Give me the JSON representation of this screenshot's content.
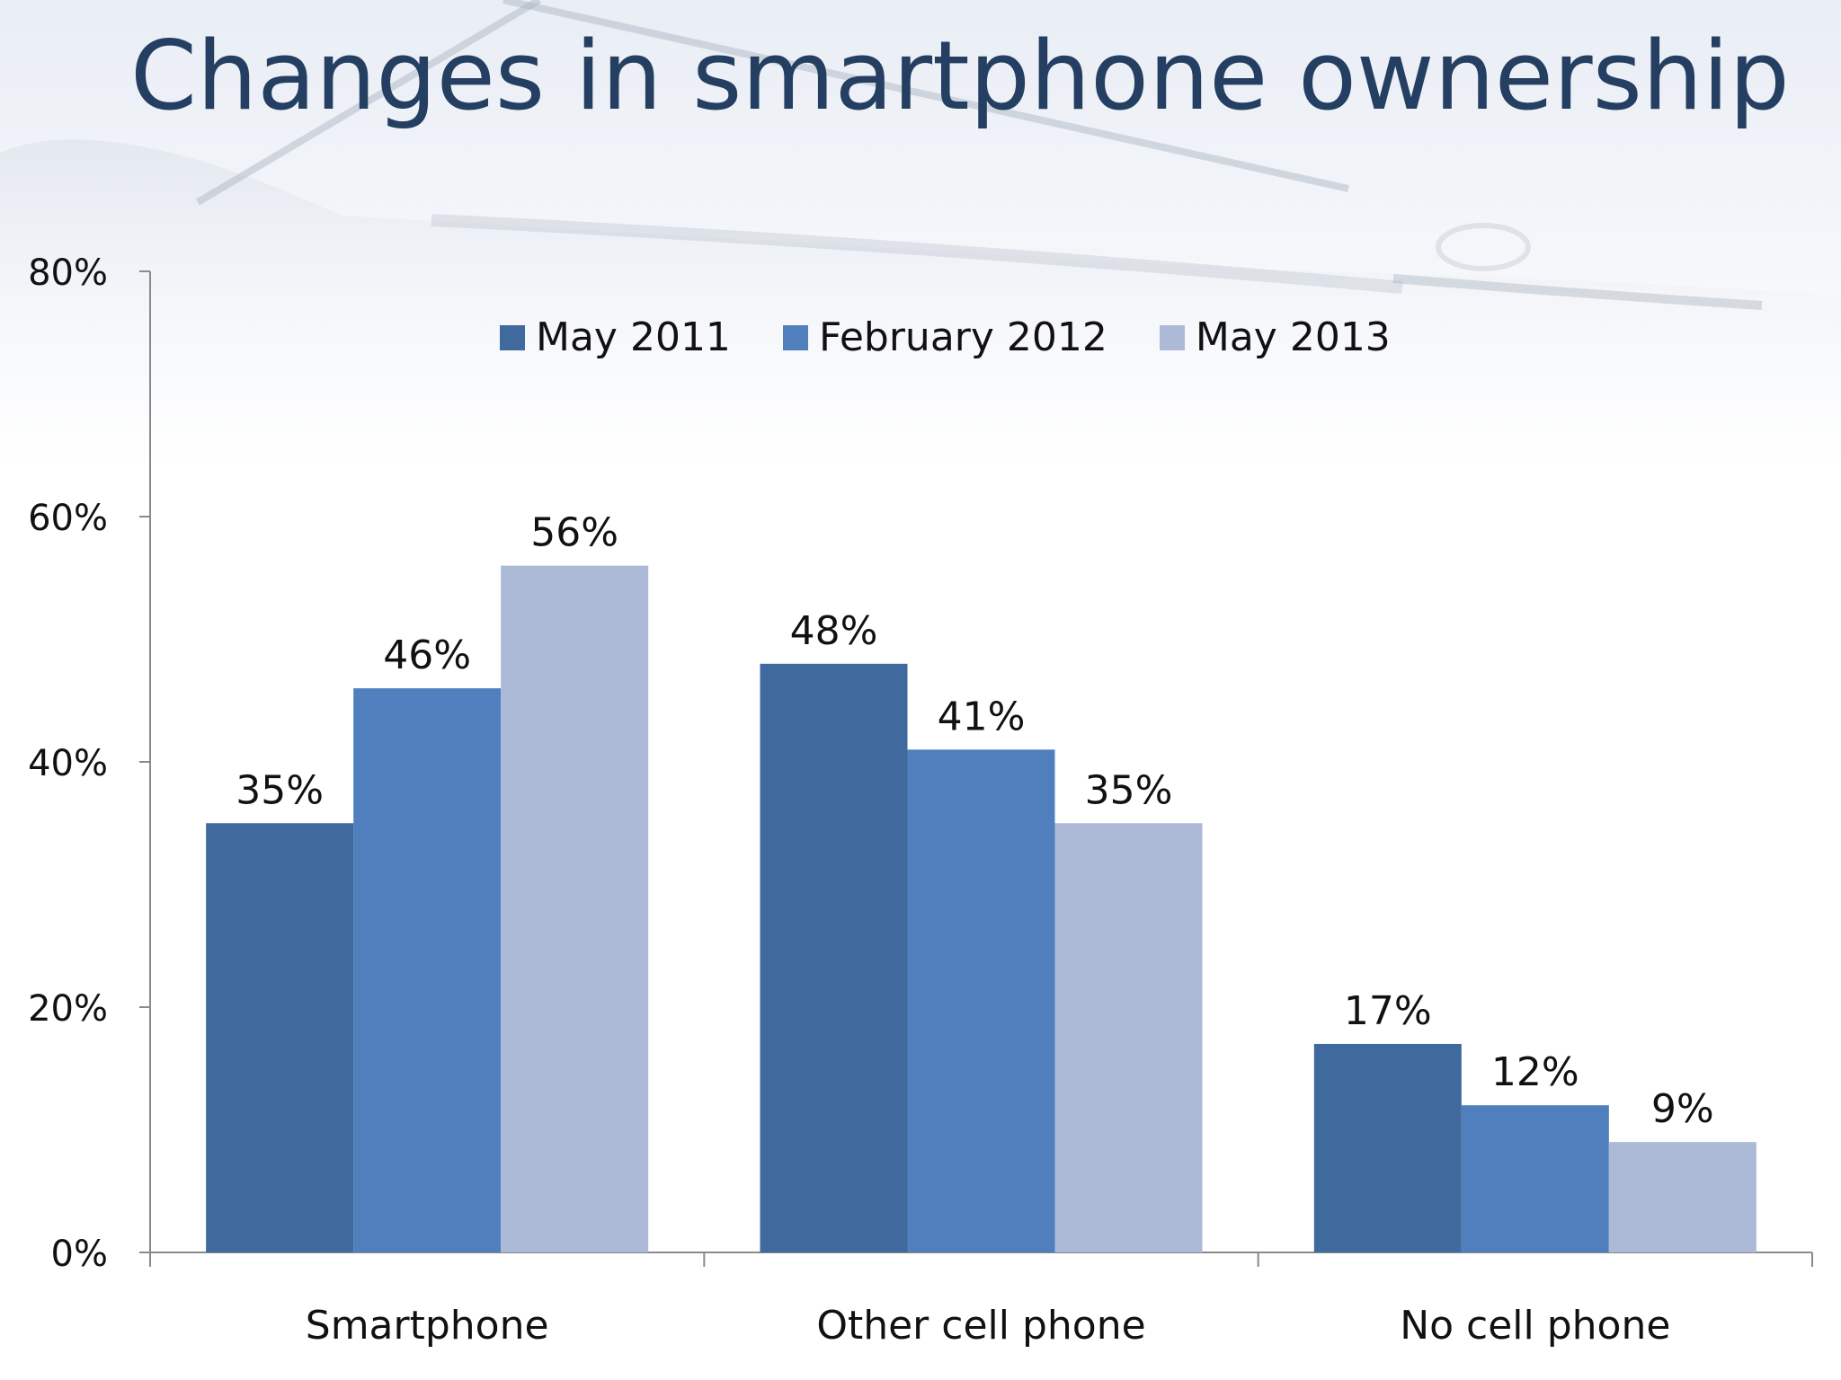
{
  "title": "Changes in smartphone ownership",
  "colors": {
    "series": [
      "#40699e",
      "#4f80bd",
      "#acbad8"
    ],
    "axis": "#8a8a8a",
    "title": "#243f62",
    "text": "#111111"
  },
  "chart_data": {
    "type": "bar",
    "title": "Changes in smartphone ownership",
    "categories": [
      "Smartphone",
      "Other cell phone",
      "No cell phone"
    ],
    "series": [
      {
        "name": "May 2011",
        "values": [
          35,
          48,
          17
        ]
      },
      {
        "name": "February 2012",
        "values": [
          46,
          41,
          12
        ]
      },
      {
        "name": "May 2013",
        "values": [
          56,
          35,
          9
        ]
      }
    ],
    "value_labels": [
      [
        "35%",
        "48%",
        "17%"
      ],
      [
        "46%",
        "41%",
        "12%"
      ],
      [
        "56%",
        "35%",
        "9%"
      ]
    ],
    "ylim": [
      0,
      80
    ],
    "yticks": [
      0,
      20,
      40,
      60,
      80
    ],
    "ytick_labels": [
      "0%",
      "20%",
      "40%",
      "60%",
      "80%"
    ],
    "legend_position": "top-center",
    "grid": false
  }
}
